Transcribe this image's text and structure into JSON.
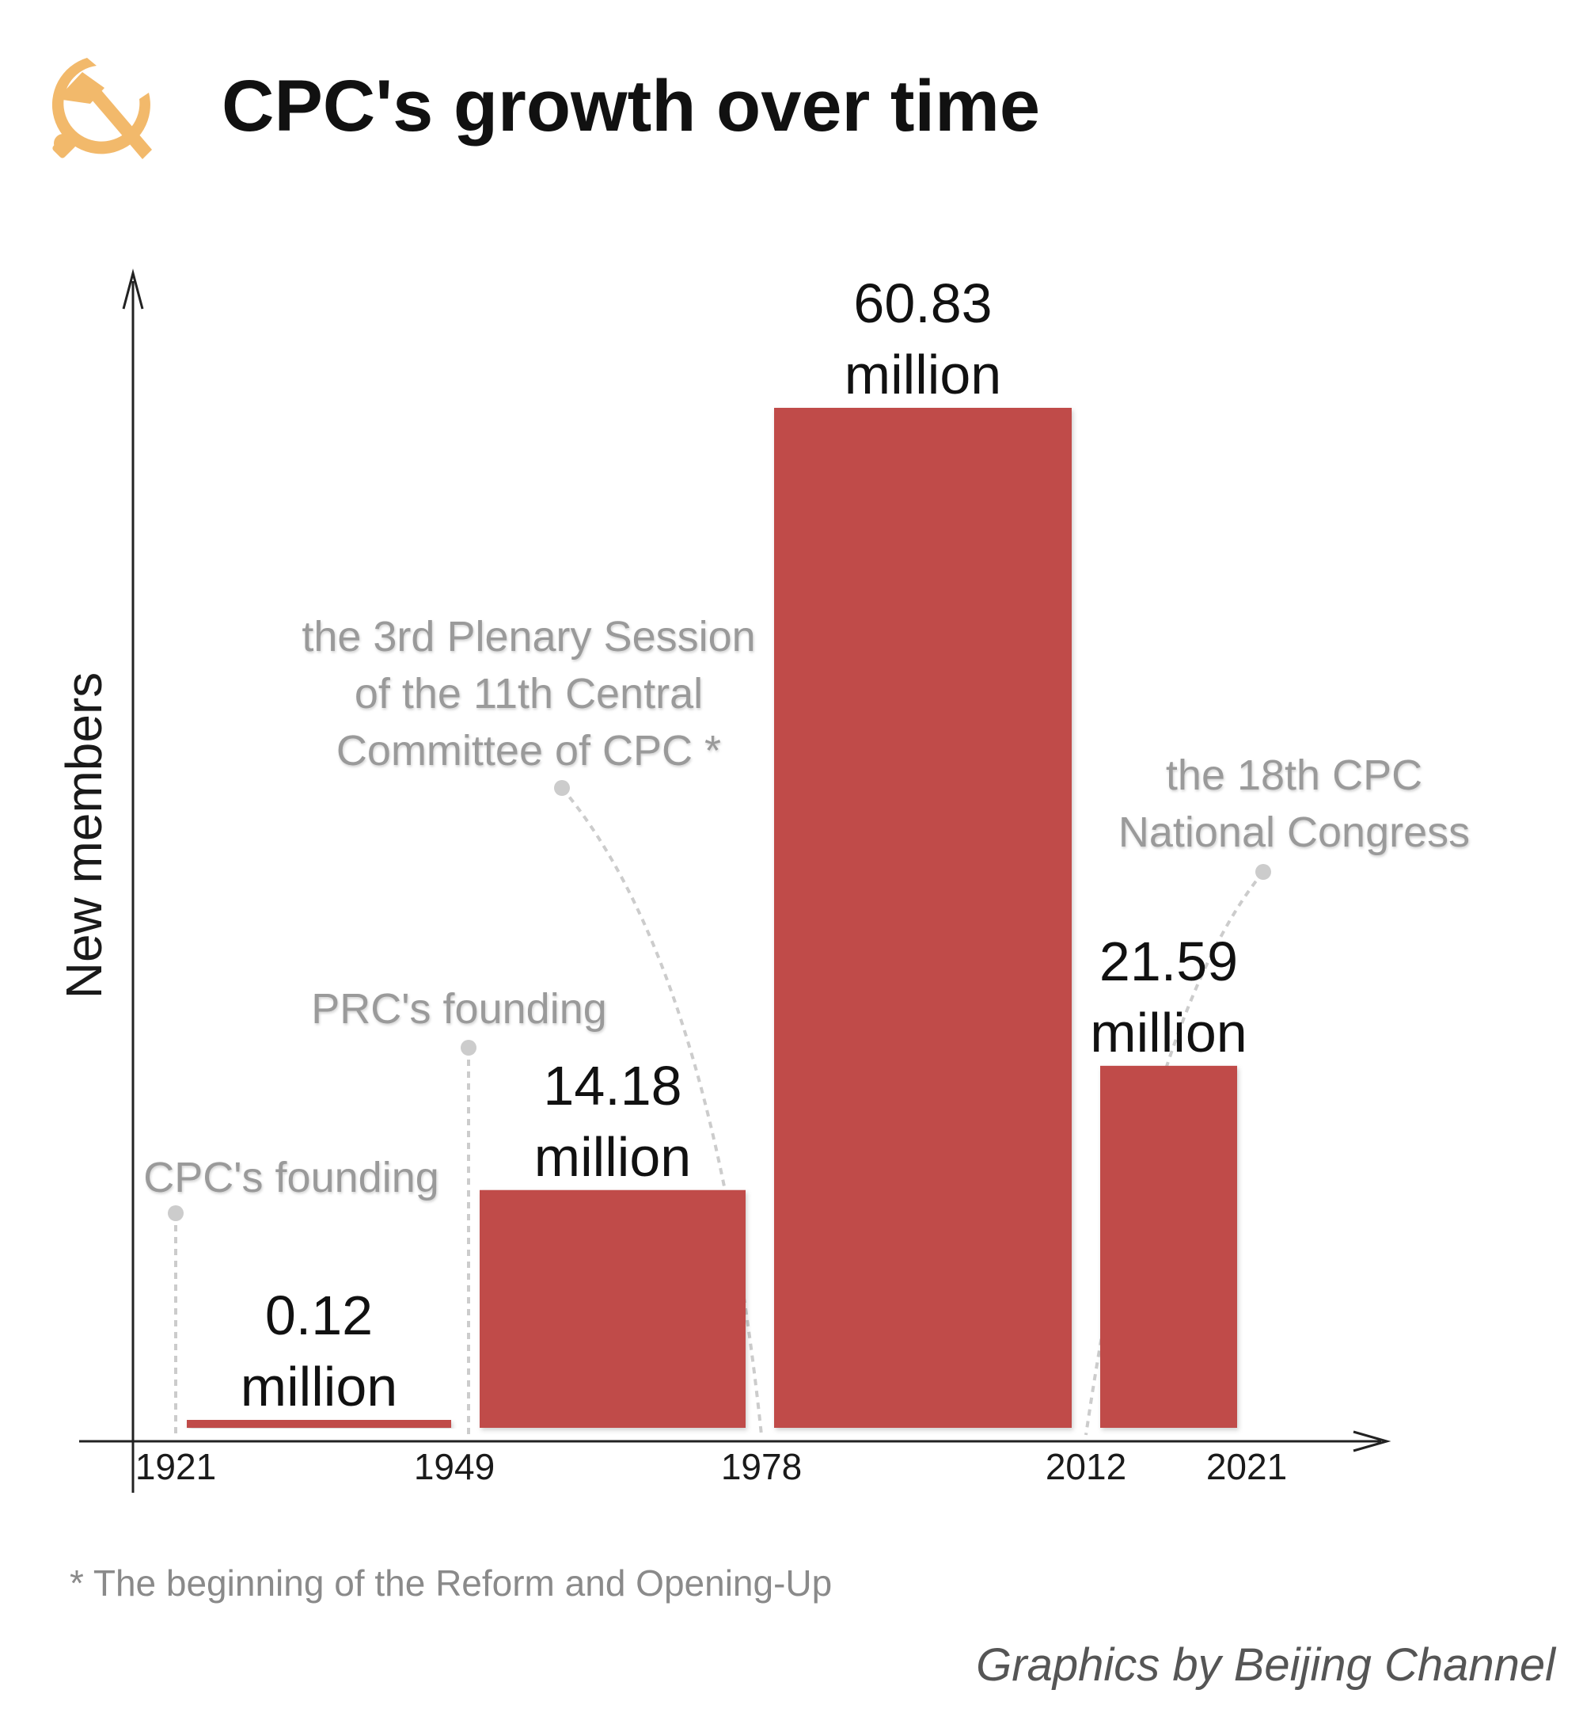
{
  "chart_data": {
    "type": "bar",
    "title": "CPC's  growth over time",
    "ylabel": "New members",
    "xlabel": "",
    "x_ticks": [
      "1921",
      "1949",
      "1978",
      "2012",
      "2021"
    ],
    "bars": [
      {
        "start": 1921,
        "end": 1949,
        "value": 0.12,
        "label_line1": "0.12",
        "label_line2": "million"
      },
      {
        "start": 1949,
        "end": 1978,
        "value": 14.18,
        "label_line1": "14.18",
        "label_line2": "million"
      },
      {
        "start": 1978,
        "end": 2012,
        "value": 60.83,
        "label_line1": "60.83",
        "label_line2": "million"
      },
      {
        "start": 2012,
        "end": 2021,
        "value": 21.59,
        "label_line1": "21.59",
        "label_line2": "million"
      }
    ],
    "unit": "million",
    "ylim": [
      0,
      70
    ],
    "bar_color": "#c04b49",
    "annotations": [
      {
        "year": 1921,
        "lines": [
          "CPC's founding"
        ]
      },
      {
        "year": 1949,
        "lines": [
          "PRC's founding"
        ]
      },
      {
        "year": 1978,
        "lines": [
          "the 3rd Plenary Session",
          "of the 11th Central",
          "Committee of CPC *"
        ]
      },
      {
        "year": 2012,
        "lines": [
          "the 18th CPC",
          "National Congress"
        ]
      }
    ],
    "grid": false,
    "legend": "none"
  },
  "logo": {
    "icon": "hammer-sickle-icon",
    "color": "#f2b96b"
  },
  "footnote": "* The beginning of the Reform and Opening-Up",
  "credit": "Graphics by Beijing Channel"
}
